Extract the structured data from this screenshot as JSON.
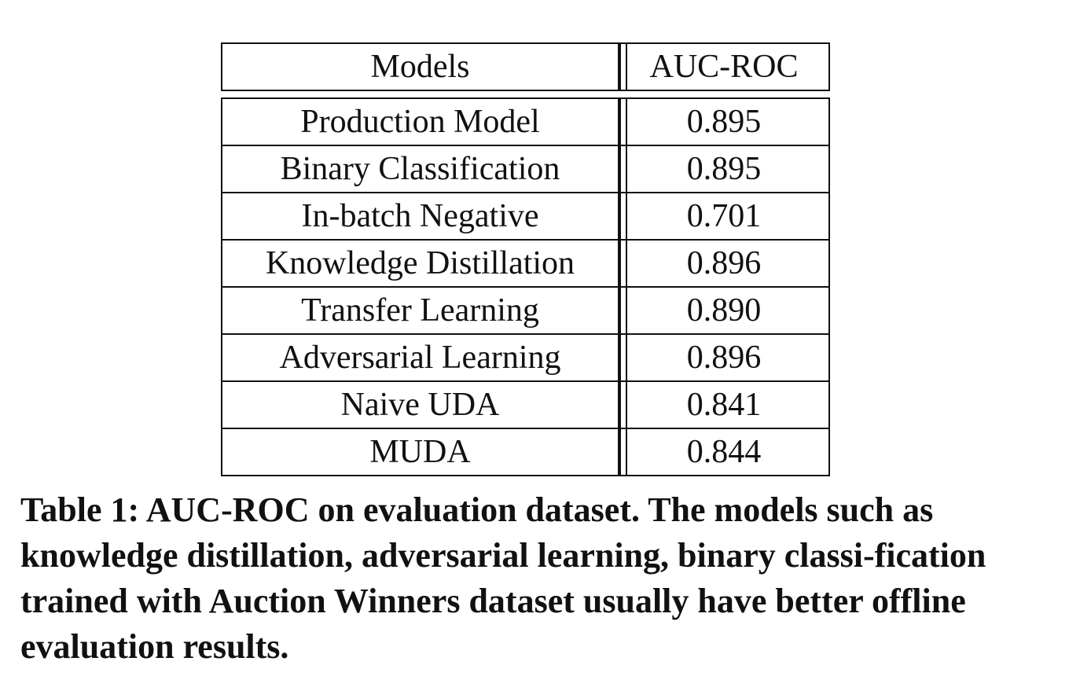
{
  "table": {
    "header": {
      "model": "Models",
      "metric": "AUC-ROC"
    },
    "rows": [
      {
        "model": "Production Model",
        "auc": "0.895"
      },
      {
        "model": "Binary Classification",
        "auc": "0.895"
      },
      {
        "model": "In-batch Negative",
        "auc": "0.701"
      },
      {
        "model": "Knowledge Distillation",
        "auc": "0.896"
      },
      {
        "model": "Transfer Learning",
        "auc": "0.890"
      },
      {
        "model": "Adversarial Learning",
        "auc": "0.896"
      },
      {
        "model": "Naive UDA",
        "auc": "0.841"
      },
      {
        "model": "MUDA",
        "auc": "0.844"
      }
    ]
  },
  "caption": {
    "text": "Table 1: AUC-ROC on evaluation dataset. The models such as knowledge distillation, adversarial learning, binary classi-fication trained with Auction Winners dataset usually have better offline evaluation results."
  }
}
